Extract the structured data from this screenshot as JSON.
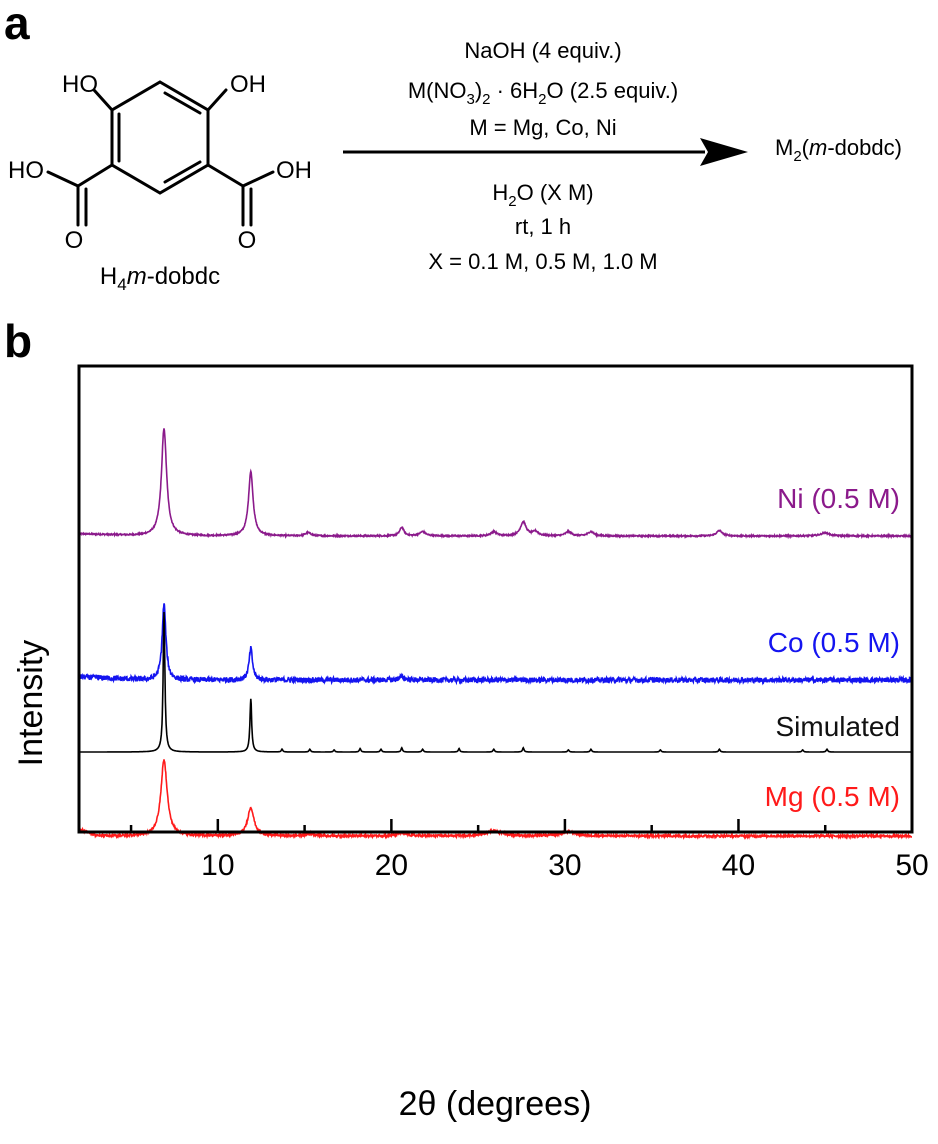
{
  "panel_labels": {
    "a": "a",
    "b": "b"
  },
  "scheme": {
    "reactant_label_prefix": "H",
    "reactant_label_sub": "4",
    "reactant_label_ital": "m",
    "reactant_label_suffix": "-dobdc",
    "substituent_ho_left": "HO",
    "substituent_oh_right": "OH",
    "acid_left": "HO",
    "acid_right": "OH",
    "carbonyl_o_left": "O",
    "carbonyl_o_right": "O",
    "cond_1": "NaOH (4 equiv.)",
    "cond_2_a": "M(NO",
    "cond_2_sub1": "3",
    "cond_2_b": ")",
    "cond_2_sub2": "2",
    "cond_2_c": " · 6H",
    "cond_2_sub3": "2",
    "cond_2_d": "O (2.5 equiv.)",
    "cond_3": "M = Mg, Co, Ni",
    "cond_4_a": "H",
    "cond_4_sub": "2",
    "cond_4_b": "O (X M)",
    "cond_5": "rt, 1 h",
    "cond_6": "X = 0.1 M, 0.5 M, 1.0 M",
    "product_a": "M",
    "product_sub": "2",
    "product_b": "(",
    "product_ital": "m",
    "product_c": "-dobdc)"
  },
  "chart_data": {
    "type": "line",
    "xlabel": "2θ (degrees)",
    "ylabel": "Intensity",
    "xlim": [
      2,
      50
    ],
    "x_ticks": [
      10,
      20,
      30,
      40,
      50
    ],
    "y_ticks": "none",
    "grid": false,
    "legend": "inline labels at right end of each trace",
    "series": [
      {
        "name": "Ni (0.5 M)",
        "color": "#8b1a8b",
        "noise": 0.006,
        "baseline": [
          [
            2,
            0.02
          ],
          [
            6,
            0.0
          ],
          [
            50,
            0.0
          ]
        ],
        "peaks": [
          [
            6.9,
            1.0,
            0.18
          ],
          [
            11.9,
            0.6,
            0.16
          ],
          [
            15.2,
            0.03,
            0.2
          ],
          [
            20.6,
            0.08,
            0.15
          ],
          [
            21.8,
            0.04,
            0.2
          ],
          [
            25.9,
            0.04,
            0.2
          ],
          [
            27.6,
            0.13,
            0.2
          ],
          [
            28.3,
            0.04,
            0.2
          ],
          [
            30.2,
            0.04,
            0.2
          ],
          [
            31.5,
            0.04,
            0.2
          ],
          [
            38.9,
            0.05,
            0.2
          ],
          [
            45.0,
            0.03,
            0.3
          ]
        ]
      },
      {
        "name": "Co (0.5 M)",
        "color": "#1414f0",
        "noise": 0.025,
        "baseline": [
          [
            2,
            0.03
          ],
          [
            6,
            0.0
          ],
          [
            50,
            0.0
          ]
        ],
        "peaks": [
          [
            6.9,
            0.72,
            0.13
          ],
          [
            11.9,
            0.3,
            0.12
          ],
          [
            20.6,
            0.03,
            0.2
          ]
        ]
      },
      {
        "name": "Mg (0.5 M)",
        "color": "#ff1a1a",
        "noise": 0.01,
        "baseline": [
          [
            2,
            0.07
          ],
          [
            3,
            0.0
          ],
          [
            50,
            0.0
          ]
        ],
        "peaks": [
          [
            6.9,
            0.72,
            0.22
          ],
          [
            11.9,
            0.27,
            0.22
          ],
          [
            15.4,
            0.02,
            0.3
          ],
          [
            20.6,
            0.03,
            0.3
          ],
          [
            25.9,
            0.05,
            0.5
          ],
          [
            30.2,
            0.04,
            0.5
          ]
        ]
      },
      {
        "name": "Simulated",
        "color": "#000000",
        "noise": 0.0,
        "baseline": [
          [
            2,
            0.0
          ],
          [
            50,
            0.0
          ]
        ],
        "peaks": [
          [
            6.9,
            1.0,
            0.06
          ],
          [
            11.9,
            0.38,
            0.06
          ],
          [
            13.7,
            0.02,
            0.05
          ],
          [
            15.3,
            0.02,
            0.05
          ],
          [
            16.7,
            0.015,
            0.05
          ],
          [
            18.2,
            0.025,
            0.05
          ],
          [
            19.4,
            0.02,
            0.05
          ],
          [
            20.6,
            0.03,
            0.05
          ],
          [
            21.8,
            0.02,
            0.05
          ],
          [
            23.9,
            0.025,
            0.05
          ],
          [
            25.9,
            0.02,
            0.05
          ],
          [
            27.6,
            0.03,
            0.05
          ],
          [
            30.2,
            0.015,
            0.05
          ],
          [
            31.5,
            0.02,
            0.05
          ],
          [
            35.5,
            0.015,
            0.05
          ],
          [
            38.9,
            0.02,
            0.05
          ],
          [
            43.7,
            0.015,
            0.05
          ],
          [
            45.1,
            0.02,
            0.05
          ]
        ]
      }
    ]
  }
}
